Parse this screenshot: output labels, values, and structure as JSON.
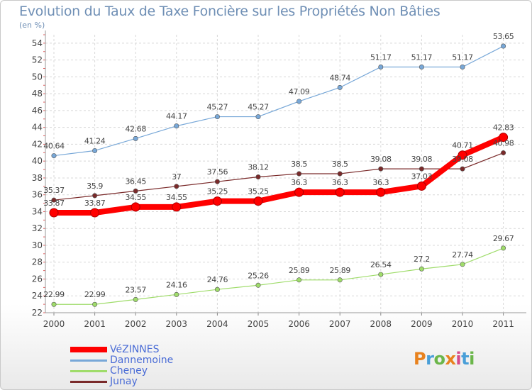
{
  "title": "Evolution du Taux de Taxe Foncière sur les Propriétés Non Bâties",
  "unit_label": "(en %)",
  "logo": {
    "text": "Proxiti",
    "colors": [
      "#e8821e",
      "#4a9fd8",
      "#6bb64a",
      "#e8821e",
      "#d64a8a",
      "#4a9fd8",
      "#6bb64a"
    ]
  },
  "chart_data": {
    "type": "line",
    "x": [
      "2000",
      "2001",
      "2002",
      "2003",
      "2004",
      "2005",
      "2006",
      "2007",
      "2008",
      "2009",
      "2010",
      "2011"
    ],
    "ylim": [
      22,
      55
    ],
    "yticks": [
      22,
      24,
      26,
      28,
      30,
      32,
      34,
      36,
      38,
      40,
      42,
      44,
      46,
      48,
      50,
      52,
      54
    ],
    "grid": true,
    "legend_position": "bottom-left",
    "series": [
      {
        "name": "VéZINNES",
        "color": "#ff0000",
        "emphasis": true,
        "values": [
          33.87,
          33.87,
          34.55,
          34.55,
          35.25,
          35.25,
          36.3,
          36.3,
          36.3,
          37.03,
          40.71,
          42.83
        ],
        "labels": [
          "33.87",
          "33.87",
          "34.55",
          "34.55",
          "35.25",
          "35.25",
          "36.3",
          "36.3",
          "36.3",
          "37.03",
          "40.71",
          "42.83"
        ]
      },
      {
        "name": "Dannemoine",
        "color": "#78a8d8",
        "values": [
          40.64,
          41.24,
          42.68,
          44.17,
          45.27,
          45.27,
          47.09,
          48.74,
          51.17,
          51.17,
          51.17,
          53.65
        ],
        "labels": [
          "40.64",
          "41.24",
          "42.68",
          "44.17",
          "45.27",
          "45.27",
          "47.09",
          "48.74",
          "51.17",
          "51.17",
          "51.17",
          "53.65"
        ]
      },
      {
        "name": "Cheney",
        "color": "#9fdc6a",
        "values": [
          22.99,
          22.99,
          23.57,
          24.16,
          24.76,
          25.26,
          25.89,
          25.89,
          26.54,
          27.2,
          27.74,
          29.67
        ],
        "labels": [
          "22.99",
          "22.99",
          "23.57",
          "24.16",
          "24.76",
          "25.26",
          "25.89",
          "25.89",
          "26.54",
          "27.2",
          "27.74",
          "29.67"
        ]
      },
      {
        "name": "Junay",
        "color": "#7a2a2a",
        "values": [
          35.37,
          35.9,
          36.45,
          37,
          37.56,
          38.12,
          38.5,
          38.5,
          39.08,
          39.08,
          39.08,
          40.98
        ],
        "labels": [
          "35.37",
          "35.9",
          "36.45",
          "37",
          "37.56",
          "38.12",
          "38.5",
          "38.5",
          "39.08",
          "39.08",
          "39.08",
          "40.98"
        ]
      }
    ]
  }
}
